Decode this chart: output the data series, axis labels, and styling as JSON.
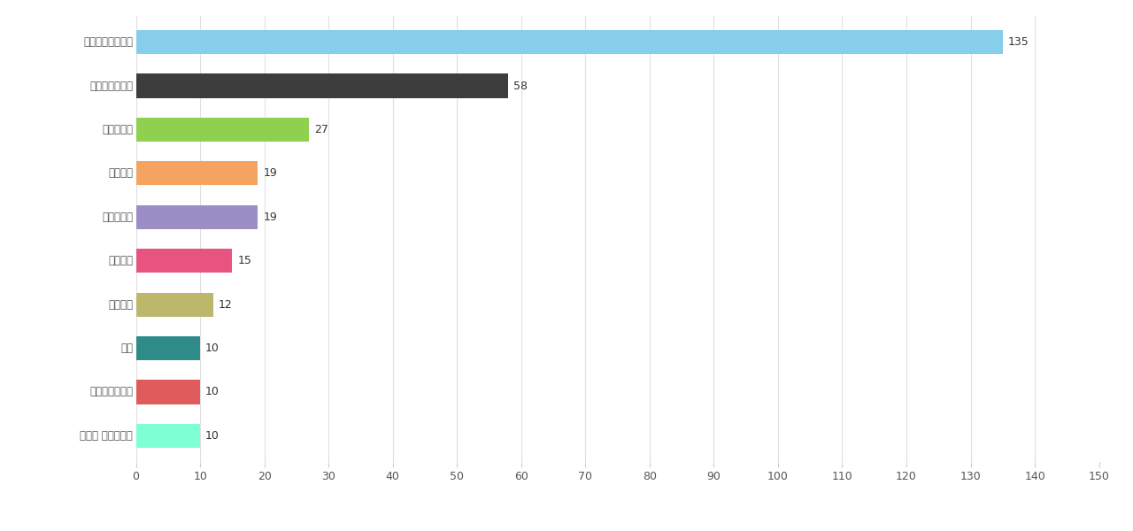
{
  "categories": [
    "엘지에너지솔루션",
    "삼성에스디아이",
    "현대자동차",
    "케이디티",
    "풍성에너지",
    "엘지전자",
    "엘지화학",
    "기아",
    "두산에너빌리티",
    "넥스콘 테크놀러지"
  ],
  "labels_bottom": [
    "엘지에너지솔루션",
    "삼성에스디아이",
    "현대자동차",
    "케이디티",
    "풍성에너지",
    "엘지전자",
    "엘지화학",
    "기아",
    "두산에너빌리티",
    "넥스콘 테크놀러지"
  ],
  "values": [
    135,
    58,
    27,
    19,
    19,
    15,
    12,
    10,
    10,
    10
  ],
  "bar_colors": [
    "#87CEEB",
    "#3d3d3d",
    "#8FD14F",
    "#F4A460",
    "#9B8EC4",
    "#E75480",
    "#BDB76B",
    "#2E8B87",
    "#E05C5C",
    "#7FFFD4"
  ],
  "xlim": [
    0,
    150
  ],
  "xticks": [
    0,
    10,
    20,
    30,
    40,
    50,
    60,
    70,
    80,
    90,
    100,
    110,
    120,
    130,
    140,
    150
  ],
  "background_color": "#ffffff",
  "grid_color": "#e0e0e0",
  "legend_dot_color": "#aaaaaa"
}
